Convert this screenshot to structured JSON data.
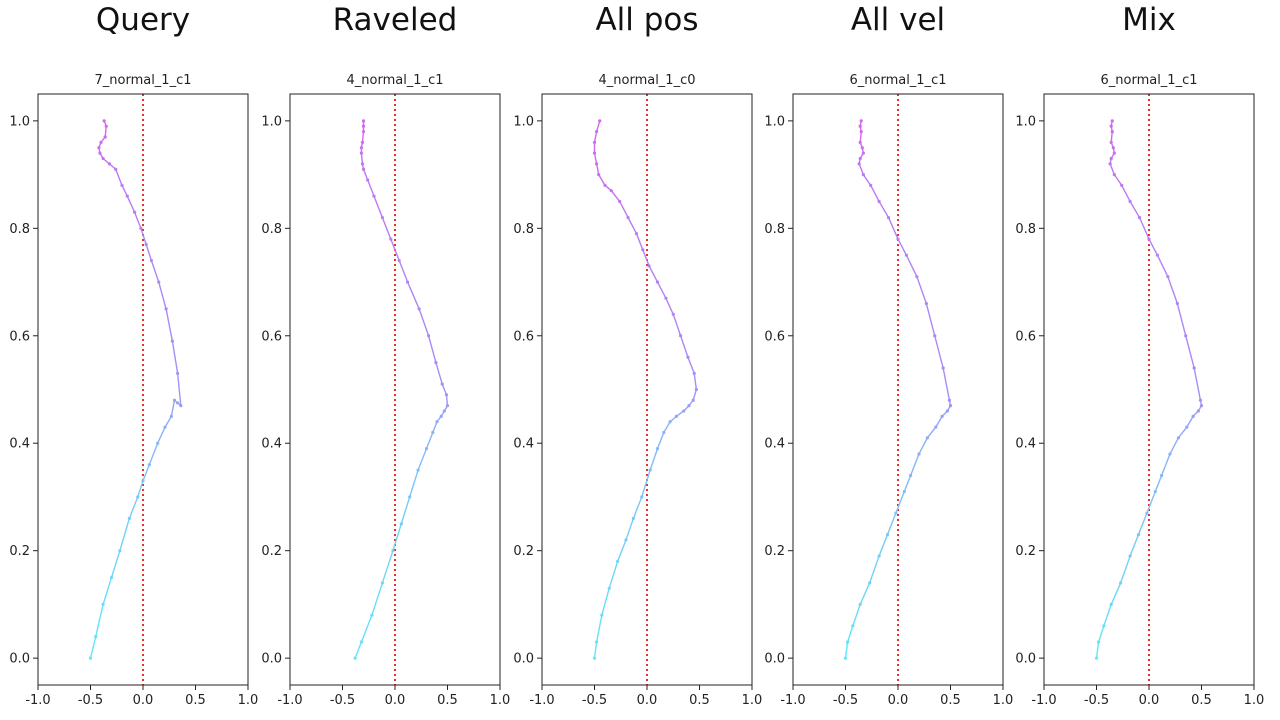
{
  "chart_data": [
    {
      "type": "line",
      "title": "Query",
      "subtitle": "7_normal_1_c1",
      "xlim": [
        -1.0,
        1.0
      ],
      "ylim": [
        -0.05,
        1.05
      ],
      "xticks": [
        "-1.0",
        "-0.5",
        "0.0",
        "0.5",
        "1.0"
      ],
      "yticks": [
        "0.0",
        "0.2",
        "0.4",
        "0.6",
        "0.8",
        "1.0"
      ],
      "reference_line": {
        "x": 0.0,
        "color": "#e8302a",
        "style": "dotted"
      },
      "colormap": [
        "#60e8f8",
        "#a98af5",
        "#d466f0"
      ],
      "x": [
        -0.5,
        -0.45,
        -0.38,
        -0.3,
        -0.22,
        -0.13,
        -0.05,
        0.0,
        0.06,
        0.14,
        0.21,
        0.27,
        0.3,
        0.33,
        0.36,
        0.33,
        0.28,
        0.22,
        0.15,
        0.08,
        0.03,
        -0.02,
        -0.08,
        -0.15,
        -0.2,
        -0.26,
        -0.32,
        -0.38,
        -0.41,
        -0.42,
        -0.4,
        -0.36,
        -0.35,
        -0.37
      ],
      "y": [
        0.0,
        0.04,
        0.1,
        0.15,
        0.2,
        0.26,
        0.3,
        0.33,
        0.36,
        0.4,
        0.43,
        0.45,
        0.48,
        0.475,
        0.47,
        0.53,
        0.59,
        0.65,
        0.7,
        0.74,
        0.77,
        0.8,
        0.83,
        0.86,
        0.88,
        0.91,
        0.92,
        0.93,
        0.94,
        0.95,
        0.96,
        0.97,
        0.99,
        1.0
      ]
    },
    {
      "type": "line",
      "title": "Raveled",
      "subtitle": "4_normal_1_c1",
      "xlim": [
        -1.0,
        1.0
      ],
      "ylim": [
        -0.05,
        1.05
      ],
      "xticks": [
        "-1.0",
        "-0.5",
        "0.0",
        "0.5",
        "1.0"
      ],
      "yticks": [
        "0.0",
        "0.2",
        "0.4",
        "0.6",
        "0.8",
        "1.0"
      ],
      "reference_line": {
        "x": 0.0,
        "color": "#e8302a",
        "style": "dotted"
      },
      "colormap": [
        "#60e8f8",
        "#a98af5",
        "#d466f0"
      ],
      "x": [
        -0.38,
        -0.32,
        -0.22,
        -0.12,
        -0.02,
        0.06,
        0.14,
        0.22,
        0.3,
        0.36,
        0.4,
        0.44,
        0.47,
        0.5,
        0.49,
        0.45,
        0.39,
        0.32,
        0.23,
        0.12,
        0.04,
        -0.04,
        -0.12,
        -0.2,
        -0.26,
        -0.3,
        -0.31,
        -0.32,
        -0.32,
        -0.31,
        -0.3,
        -0.3,
        -0.3
      ],
      "y": [
        0.0,
        0.03,
        0.08,
        0.14,
        0.2,
        0.25,
        0.3,
        0.35,
        0.39,
        0.42,
        0.44,
        0.45,
        0.46,
        0.47,
        0.49,
        0.51,
        0.55,
        0.6,
        0.65,
        0.7,
        0.74,
        0.78,
        0.82,
        0.86,
        0.89,
        0.91,
        0.92,
        0.94,
        0.95,
        0.96,
        0.98,
        0.99,
        1.0
      ]
    },
    {
      "type": "line",
      "title": "All pos",
      "subtitle": "4_normal_1_c0",
      "xlim": [
        -1.0,
        1.0
      ],
      "ylim": [
        -0.05,
        1.05
      ],
      "xticks": [
        "-1.0",
        "-0.5",
        "0.0",
        "0.5",
        "1.0"
      ],
      "yticks": [
        "0.0",
        "0.2",
        "0.4",
        "0.6",
        "0.8",
        "1.0"
      ],
      "reference_line": {
        "x": 0.0,
        "color": "#e8302a",
        "style": "dotted"
      },
      "colormap": [
        "#60e8f8",
        "#a98af5",
        "#d466f0"
      ],
      "x": [
        -0.5,
        -0.48,
        -0.43,
        -0.36,
        -0.28,
        -0.2,
        -0.13,
        -0.05,
        0.03,
        0.1,
        0.16,
        0.22,
        0.28,
        0.35,
        0.4,
        0.44,
        0.47,
        0.45,
        0.39,
        0.32,
        0.25,
        0.18,
        0.1,
        0.02,
        -0.04,
        -0.1,
        -0.18,
        -0.26,
        -0.34,
        -0.4,
        -0.46,
        -0.48,
        -0.5,
        -0.5,
        -0.48,
        -0.45
      ],
      "y": [
        0.0,
        0.03,
        0.08,
        0.13,
        0.18,
        0.22,
        0.26,
        0.3,
        0.35,
        0.39,
        0.42,
        0.44,
        0.45,
        0.46,
        0.47,
        0.48,
        0.5,
        0.53,
        0.56,
        0.6,
        0.64,
        0.67,
        0.7,
        0.73,
        0.76,
        0.79,
        0.82,
        0.85,
        0.87,
        0.88,
        0.9,
        0.92,
        0.94,
        0.96,
        0.98,
        1.0
      ]
    },
    {
      "type": "line",
      "title": "All vel",
      "subtitle": "6_normal_1_c1",
      "xlim": [
        -1.0,
        1.0
      ],
      "ylim": [
        -0.05,
        1.05
      ],
      "xticks": [
        "-1.0",
        "-0.5",
        "0.0",
        "0.5",
        "1.0"
      ],
      "yticks": [
        "0.0",
        "0.2",
        "0.4",
        "0.6",
        "0.8",
        "1.0"
      ],
      "reference_line": {
        "x": 0.0,
        "color": "#e8302a",
        "style": "dotted"
      },
      "colormap": [
        "#60e8f8",
        "#a98af5",
        "#d466f0"
      ],
      "x": [
        -0.5,
        -0.48,
        -0.43,
        -0.36,
        -0.27,
        -0.18,
        -0.1,
        -0.02,
        0.06,
        0.12,
        0.2,
        0.28,
        0.36,
        0.42,
        0.47,
        0.5,
        0.49,
        0.43,
        0.35,
        0.27,
        0.18,
        0.08,
        0.0,
        -0.09,
        -0.18,
        -0.26,
        -0.33,
        -0.37,
        -0.36,
        -0.33,
        -0.34,
        -0.36,
        -0.35,
        -0.36,
        -0.35
      ],
      "y": [
        0.0,
        0.03,
        0.06,
        0.1,
        0.14,
        0.19,
        0.23,
        0.27,
        0.31,
        0.34,
        0.38,
        0.41,
        0.43,
        0.45,
        0.46,
        0.47,
        0.48,
        0.54,
        0.6,
        0.66,
        0.71,
        0.75,
        0.78,
        0.82,
        0.85,
        0.88,
        0.9,
        0.92,
        0.93,
        0.94,
        0.95,
        0.96,
        0.98,
        0.99,
        1.0
      ]
    },
    {
      "type": "line",
      "title": "Mix",
      "subtitle": "6_normal_1_c1",
      "xlim": [
        -1.0,
        1.0
      ],
      "ylim": [
        -0.05,
        1.05
      ],
      "xticks": [
        "-1.0",
        "-0.5",
        "0.0",
        "0.5",
        "1.0"
      ],
      "yticks": [
        "0.0",
        "0.2",
        "0.4",
        "0.6",
        "0.8",
        "1.0"
      ],
      "reference_line": {
        "x": 0.0,
        "color": "#e8302a",
        "style": "dotted"
      },
      "colormap": [
        "#60e8f8",
        "#a98af5",
        "#d466f0"
      ],
      "x": [
        -0.5,
        -0.48,
        -0.43,
        -0.36,
        -0.27,
        -0.18,
        -0.1,
        -0.02,
        0.06,
        0.12,
        0.2,
        0.28,
        0.36,
        0.42,
        0.47,
        0.5,
        0.49,
        0.43,
        0.35,
        0.27,
        0.18,
        0.08,
        0.0,
        -0.09,
        -0.18,
        -0.26,
        -0.33,
        -0.37,
        -0.36,
        -0.33,
        -0.34,
        -0.36,
        -0.35,
        -0.36,
        -0.35
      ],
      "y": [
        0.0,
        0.03,
        0.06,
        0.1,
        0.14,
        0.19,
        0.23,
        0.27,
        0.31,
        0.34,
        0.38,
        0.41,
        0.43,
        0.45,
        0.46,
        0.47,
        0.48,
        0.54,
        0.6,
        0.66,
        0.71,
        0.75,
        0.78,
        0.82,
        0.85,
        0.88,
        0.9,
        0.92,
        0.93,
        0.94,
        0.95,
        0.96,
        0.98,
        0.99,
        1.0
      ]
    }
  ]
}
